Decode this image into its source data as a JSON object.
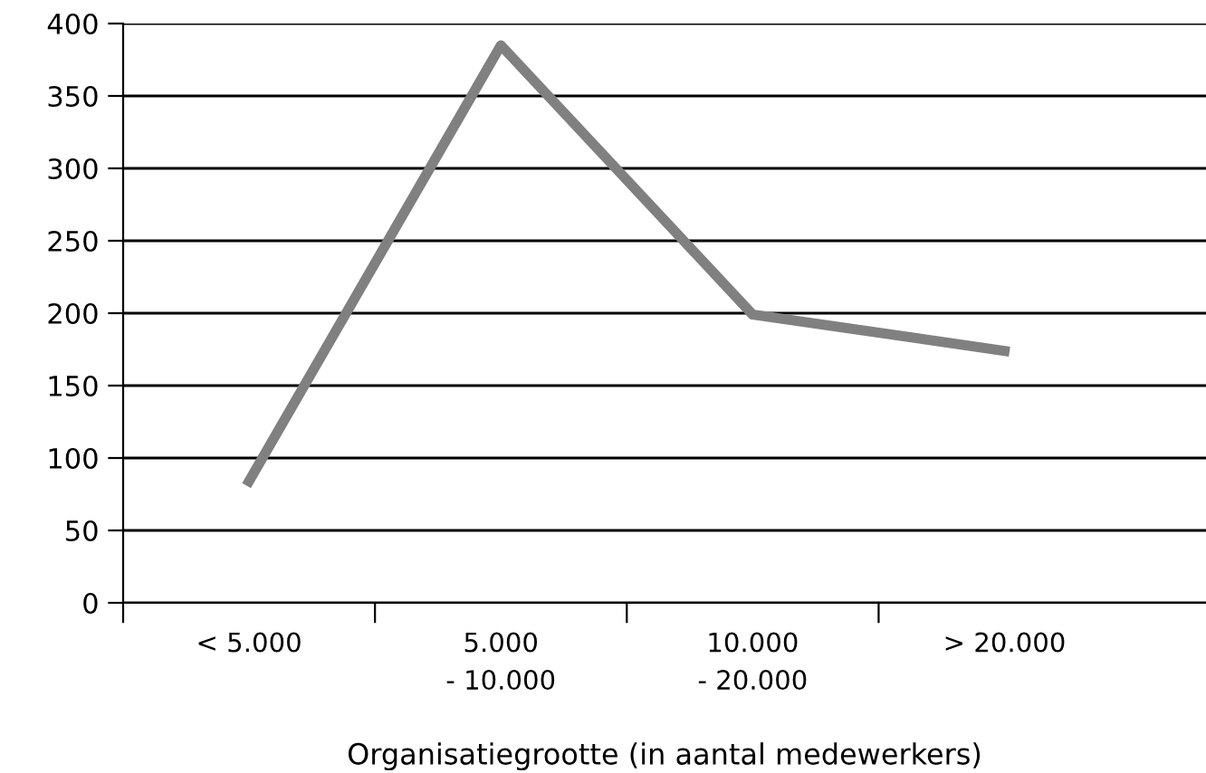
{
  "chart_data": {
    "type": "line",
    "xlabel": "Organisatiegrootte (in aantal medewerkers)",
    "categories": [
      "< 5.000",
      "5.000\n- 10.000",
      "10.000\n- 20.000",
      "> 20.000"
    ],
    "series": [
      {
        "color": "#808080",
        "values": [
          84,
          385,
          199,
          174
        ]
      }
    ],
    "ylim": [
      0,
      400
    ],
    "yticks": [
      0,
      50,
      100,
      150,
      200,
      250,
      300,
      350,
      400
    ],
    "grid": "y",
    "marker": "none",
    "line_style": "solid"
  }
}
